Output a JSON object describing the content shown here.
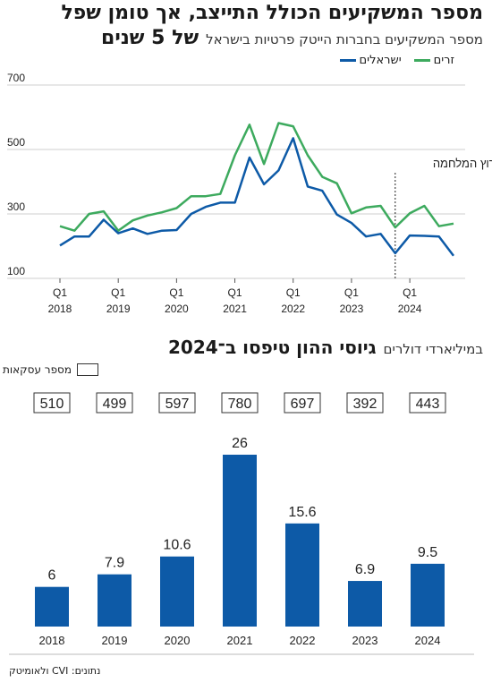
{
  "headline": {
    "line1": "מספר המשקיעים הכולל התייצב, אך טומן שפל",
    "line2_bold": "של 5 שנים",
    "line2_sub": "מספר המשקיעים בחברות הייטק פרטיות בישראל"
  },
  "colors": {
    "israelis": "#0d5aa7",
    "foreign": "#3daa5e",
    "bar": "#0d5aa7"
  },
  "chart_data": [
    {
      "type": "line",
      "y_ticks": [
        100,
        300,
        500,
        700
      ],
      "ylim": [
        100,
        700
      ],
      "x_ticks": [
        {
          "q": "Q1",
          "year": "2018"
        },
        {
          "q": "Q1",
          "year": "2019"
        },
        {
          "q": "Q1",
          "year": "2020"
        },
        {
          "q": "Q1",
          "year": "2021"
        },
        {
          "q": "Q1",
          "year": "2022"
        },
        {
          "q": "Q1",
          "year": "2023"
        },
        {
          "q": "Q1",
          "year": "2024"
        }
      ],
      "x": [
        "2018-Q1",
        "2018-Q2",
        "2018-Q3",
        "2018-Q4",
        "2019-Q1",
        "2019-Q2",
        "2019-Q3",
        "2019-Q4",
        "2020-Q1",
        "2020-Q2",
        "2020-Q3",
        "2020-Q4",
        "2021-Q1",
        "2021-Q2",
        "2021-Q3",
        "2021-Q4",
        "2022-Q1",
        "2022-Q2",
        "2022-Q3",
        "2022-Q4",
        "2023-Q1",
        "2023-Q2",
        "2023-Q3",
        "2023-Q4",
        "2024-Q1",
        "2024-Q2",
        "2024-Q3",
        "2024-Q4"
      ],
      "series": [
        {
          "name": "זרים",
          "color": "#3daa5e",
          "values": [
            262,
            248,
            300,
            308,
            248,
            280,
            295,
            305,
            318,
            355,
            355,
            362,
            482,
            577,
            455,
            582,
            572,
            482,
            415,
            395,
            302,
            320,
            325,
            258,
            302,
            325,
            262,
            270
          ]
        },
        {
          "name": "ישראלים",
          "color": "#0d5aa7",
          "values": [
            202,
            230,
            230,
            282,
            240,
            255,
            238,
            248,
            250,
            300,
            322,
            335,
            335,
            475,
            392,
            435,
            535,
            385,
            372,
            298,
            272,
            230,
            238,
            178,
            233,
            232,
            230,
            170
          ]
        }
      ],
      "annotation": {
        "label": "פרוץ המלחמה",
        "x": "2023-Q4"
      }
    },
    {
      "type": "bar",
      "title": "גיוסי ההון טיפסו ב־2024",
      "subtitle": "במיליארדי דולרים",
      "legend_label": "מספר עסקאות",
      "categories": [
        "2018",
        "2019",
        "2020",
        "2021",
        "2022",
        "2023",
        "2024"
      ],
      "values": [
        6,
        7.9,
        10.6,
        26,
        15.6,
        6.9,
        9.5
      ],
      "value_labels": [
        "6",
        "7.9",
        "10.6",
        "26",
        "15.6",
        "6.9",
        "9.5"
      ],
      "deals": [
        "510",
        "499",
        "597",
        "780",
        "697",
        "392",
        "443"
      ]
    }
  ],
  "source": "נתונים: CVI ולאומיטק"
}
